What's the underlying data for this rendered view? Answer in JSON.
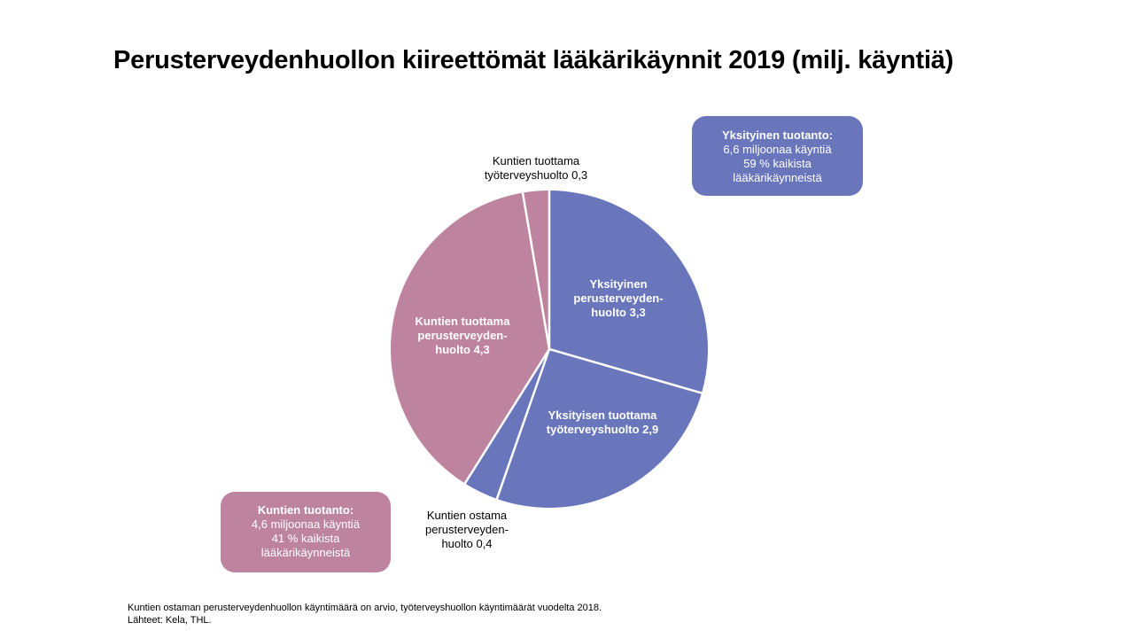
{
  "title": "Perusterveydenhuollon kiireettömät lääkärikäynnit 2019 (milj. käyntiä)",
  "colors": {
    "private": "#6976BC",
    "municipal": "#BE849F",
    "separator": "#ffffff"
  },
  "chart_data": {
    "type": "pie",
    "title": "Perusterveydenhuollon kiireettömät lääkärikäynnit 2019 (milj. käyntiä)",
    "unit": "milj. käyntiä",
    "slices": [
      {
        "lines": [
          "Yksityinen",
          "perusterveyden-",
          "huolto 3,3"
        ],
        "value": 3.3,
        "group": "private",
        "label_position": "inside"
      },
      {
        "lines": [
          "Yksityisen tuottama",
          "työterveyshuolto 2,9"
        ],
        "value": 2.9,
        "group": "private",
        "label_position": "inside"
      },
      {
        "lines": [
          "Kuntien ostama",
          "perusterveyden-",
          "huolto 0,4"
        ],
        "value": 0.4,
        "group": "private",
        "label_position": "outside"
      },
      {
        "lines": [
          "Kuntien tuottama",
          "perusterveyden-",
          "huolto 4,3"
        ],
        "value": 4.3,
        "group": "municipal",
        "label_position": "inside"
      },
      {
        "lines": [
          "Kuntien tuottama",
          "työterveyshuolto 0,3"
        ],
        "value": 0.3,
        "group": "municipal",
        "label_position": "outside"
      }
    ]
  },
  "summary_boxes": {
    "private": {
      "heading": "Yksityinen tuotanto:",
      "line1": "6,6 miljoonaa käyntiä",
      "line2": "59 % kaikista",
      "line3": "lääkärikäynneistä"
    },
    "municipal": {
      "heading": "Kuntien tuotanto:",
      "line1": "4,6 miljoonaa käyntiä",
      "line2": "41 % kaikista",
      "line3": "lääkärikäynneistä"
    }
  },
  "footnote": {
    "line1": "Kuntien ostaman perusterveydenhuollon käyntimäärä on arvio, työterveyshuollon käyntimäärät vuodelta 2018.",
    "line2": "Lähteet: Kela, THL."
  }
}
